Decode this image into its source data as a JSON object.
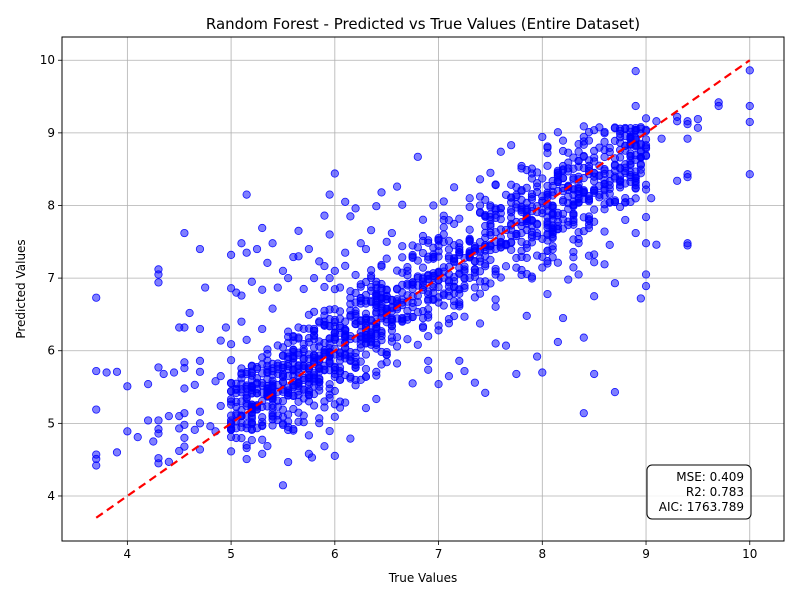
{
  "chart_data": {
    "type": "scatter",
    "title": "Random Forest - Predicted vs True Values (Entire Dataset)",
    "xlabel": "True Values",
    "ylabel": "Predicted Values",
    "xlim": [
      3.37,
      10.33
    ],
    "ylim": [
      3.38,
      10.32
    ],
    "xticks": [
      "4",
      "5",
      "6",
      "7",
      "8",
      "9",
      "10"
    ],
    "yticks": [
      "4",
      "5",
      "6",
      "7",
      "8",
      "9",
      "10"
    ],
    "grid": true,
    "point_color": "#0000ff",
    "point_count_estimate": 1500,
    "reference_line": {
      "color": "#ff0000",
      "style": "dashed",
      "x": [
        3.7,
        10.0
      ],
      "y": [
        3.7,
        10.0
      ]
    },
    "stats_box": {
      "position": "bottom-right",
      "lines": [
        "MSE: 0.409",
        "R2: 0.783",
        "AIC: 1763.789"
      ]
    },
    "series": [
      {
        "points": [
          [
            3.7,
            6.73
          ],
          [
            3.7,
            5.72
          ],
          [
            3.7,
            5.19
          ],
          [
            3.7,
            4.57
          ],
          [
            3.7,
            4.51
          ],
          [
            3.7,
            4.42
          ],
          [
            3.8,
            5.7
          ],
          [
            3.9,
            5.71
          ],
          [
            3.9,
            4.6
          ],
          [
            4.0,
            5.51
          ],
          [
            4.0,
            4.89
          ],
          [
            4.1,
            4.81
          ],
          [
            4.2,
            5.54
          ],
          [
            4.2,
            5.04
          ],
          [
            4.25,
            4.75
          ],
          [
            4.3,
            7.12
          ],
          [
            4.3,
            7.05
          ],
          [
            4.3,
            6.94
          ],
          [
            4.3,
            5.77
          ],
          [
            4.3,
            5.04
          ],
          [
            4.3,
            4.92
          ],
          [
            4.3,
            4.86
          ],
          [
            4.3,
            4.52
          ],
          [
            4.3,
            4.45
          ],
          [
            4.35,
            5.68
          ],
          [
            4.4,
            5.1
          ],
          [
            4.4,
            4.47
          ],
          [
            4.45,
            5.7
          ],
          [
            4.5,
            6.32
          ],
          [
            4.5,
            5.1
          ],
          [
            4.5,
            4.93
          ],
          [
            4.5,
            4.62
          ],
          [
            4.55,
            7.62
          ],
          [
            4.55,
            6.32
          ],
          [
            4.55,
            5.84
          ],
          [
            4.55,
            5.76
          ],
          [
            4.55,
            5.48
          ],
          [
            4.55,
            5.14
          ],
          [
            4.55,
            4.98
          ],
          [
            4.55,
            4.8
          ],
          [
            4.55,
            4.68
          ],
          [
            4.6,
            6.52
          ],
          [
            4.65,
            5.53
          ],
          [
            4.65,
            4.91
          ],
          [
            4.7,
            7.4
          ],
          [
            4.7,
            6.3
          ],
          [
            4.7,
            5.86
          ],
          [
            4.7,
            5.71
          ],
          [
            4.7,
            5.16
          ],
          [
            4.7,
            5.0
          ],
          [
            4.7,
            4.64
          ],
          [
            4.75,
            6.87
          ],
          [
            4.8,
            4.96
          ],
          [
            4.85,
            5.58
          ],
          [
            4.85,
            4.89
          ],
          [
            4.9,
            6.14
          ],
          [
            4.9,
            5.65
          ],
          [
            4.9,
            5.24
          ],
          [
            4.95,
            6.32
          ],
          [
            5.0,
            7.32
          ],
          [
            5.0,
            6.86
          ],
          [
            5.0,
            6.09
          ],
          [
            5.0,
            5.87
          ],
          [
            5.0,
            5.55
          ],
          [
            5.0,
            5.3
          ],
          [
            5.0,
            5.04
          ],
          [
            5.05,
            6.8
          ],
          [
            5.1,
            7.48
          ],
          [
            5.1,
            6.76
          ],
          [
            5.1,
            6.4
          ],
          [
            5.1,
            5.62
          ],
          [
            5.1,
            5.1
          ],
          [
            5.15,
            8.15
          ],
          [
            5.15,
            7.35
          ],
          [
            5.15,
            6.15
          ],
          [
            5.15,
            4.66
          ],
          [
            5.2,
            6.95
          ],
          [
            5.2,
            5.46
          ],
          [
            5.25,
            7.4
          ],
          [
            5.3,
            7.69
          ],
          [
            5.3,
            6.84
          ],
          [
            5.3,
            6.3
          ],
          [
            5.3,
            4.58
          ],
          [
            5.35,
            7.21
          ],
          [
            5.4,
            7.48
          ],
          [
            5.4,
            6.58
          ],
          [
            5.45,
            6.87
          ],
          [
            5.5,
            7.1
          ],
          [
            5.5,
            5.93
          ],
          [
            5.55,
            7.0
          ],
          [
            5.6,
            7.29
          ],
          [
            5.6,
            4.92
          ],
          [
            5.65,
            7.65
          ],
          [
            5.65,
            7.3
          ],
          [
            5.65,
            6.32
          ],
          [
            5.7,
            6.85
          ],
          [
            5.75,
            7.4
          ],
          [
            5.75,
            4.58
          ],
          [
            5.78,
            4.53
          ],
          [
            5.8,
            7.0
          ],
          [
            5.8,
            6.3
          ],
          [
            5.85,
            7.23
          ],
          [
            5.9,
            7.86
          ],
          [
            5.9,
            6.55
          ],
          [
            5.95,
            8.15
          ],
          [
            5.95,
            7.6
          ],
          [
            5.95,
            7.0
          ],
          [
            6.0,
            8.44
          ],
          [
            6.0,
            7.1
          ],
          [
            6.0,
            5.09
          ],
          [
            6.05,
            5.3
          ],
          [
            6.1,
            8.05
          ],
          [
            6.1,
            7.35
          ],
          [
            6.15,
            7.85
          ],
          [
            6.15,
            4.79
          ],
          [
            6.2,
            7.96
          ],
          [
            6.25,
            7.48
          ],
          [
            6.3,
            7.4
          ],
          [
            6.3,
            5.21
          ],
          [
            6.35,
            7.66
          ],
          [
            6.4,
            7.99
          ],
          [
            6.45,
            8.18
          ],
          [
            6.5,
            7.5
          ],
          [
            6.55,
            7.62
          ],
          [
            6.6,
            8.26
          ],
          [
            6.65,
            8.01
          ],
          [
            6.7,
            7.1
          ],
          [
            6.75,
            5.55
          ],
          [
            6.8,
            8.67
          ],
          [
            6.85,
            7.58
          ],
          [
            6.9,
            5.86
          ],
          [
            6.95,
            8.0
          ],
          [
            7.0,
            5.54
          ],
          [
            7.05,
            7.7
          ],
          [
            7.1,
            5.65
          ],
          [
            7.15,
            8.25
          ],
          [
            7.2,
            5.86
          ],
          [
            7.25,
            5.72
          ],
          [
            7.3,
            8.1
          ],
          [
            7.35,
            5.56
          ],
          [
            7.4,
            8.36
          ],
          [
            7.45,
            5.42
          ],
          [
            7.5,
            8.45
          ],
          [
            7.55,
            6.1
          ],
          [
            7.6,
            8.74
          ],
          [
            7.65,
            6.07
          ],
          [
            7.7,
            8.83
          ],
          [
            7.75,
            5.68
          ],
          [
            7.8,
            8.51
          ],
          [
            7.85,
            6.48
          ],
          [
            7.9,
            7.02
          ],
          [
            7.95,
            5.92
          ],
          [
            8.0,
            5.7
          ],
          [
            8.05,
            6.78
          ],
          [
            8.1,
            7.55
          ],
          [
            8.15,
            6.12
          ],
          [
            8.2,
            6.45
          ],
          [
            8.25,
            6.98
          ],
          [
            8.3,
            8.66
          ],
          [
            8.35,
            7.05
          ],
          [
            8.4,
            5.14
          ],
          [
            8.4,
            6.18
          ],
          [
            8.5,
            5.68
          ],
          [
            8.5,
            6.75
          ],
          [
            8.6,
            7.19
          ],
          [
            8.7,
            5.43
          ],
          [
            8.7,
            6.93
          ],
          [
            8.75,
            8.52
          ],
          [
            8.9,
            9.85
          ],
          [
            8.9,
            9.37
          ],
          [
            8.9,
            9.04
          ],
          [
            8.9,
            7.62
          ],
          [
            8.95,
            6.72
          ],
          [
            9.0,
            9.2
          ],
          [
            9.0,
            8.83
          ],
          [
            9.0,
            8.22
          ],
          [
            9.0,
            7.84
          ],
          [
            9.0,
            7.48
          ],
          [
            9.0,
            7.05
          ],
          [
            9.0,
            6.89
          ],
          [
            9.05,
            8.1
          ],
          [
            9.1,
            9.16
          ],
          [
            9.1,
            7.46
          ],
          [
            9.15,
            8.92
          ],
          [
            9.3,
            9.22
          ],
          [
            9.3,
            9.16
          ],
          [
            9.3,
            8.34
          ],
          [
            9.4,
            9.16
          ],
          [
            9.4,
            9.12
          ],
          [
            9.4,
            8.92
          ],
          [
            9.4,
            8.43
          ],
          [
            9.4,
            8.39
          ],
          [
            9.4,
            7.48
          ],
          [
            9.4,
            7.45
          ],
          [
            9.5,
            9.19
          ],
          [
            9.5,
            9.07
          ],
          [
            9.7,
            9.42
          ],
          [
            9.7,
            9.37
          ],
          [
            10.0,
            9.86
          ],
          [
            10.0,
            9.37
          ],
          [
            10.0,
            9.15
          ],
          [
            10.0,
            8.43
          ]
        ]
      }
    ]
  }
}
